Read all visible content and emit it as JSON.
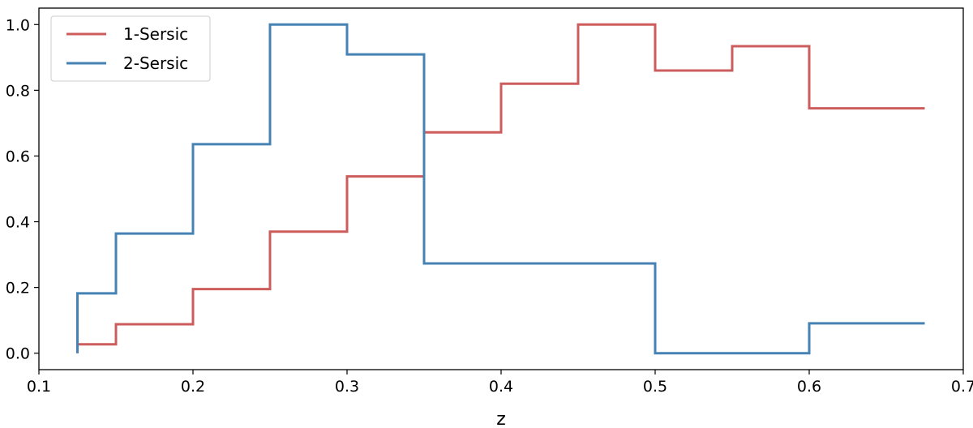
{
  "chart_data": {
    "type": "line",
    "style": "step",
    "title": "",
    "xlabel": "z",
    "ylabel": "",
    "xlim": [
      0.1,
      0.7
    ],
    "ylim": [
      -0.05,
      1.05
    ],
    "xticks": [
      0.1,
      0.2,
      0.3,
      0.4,
      0.5,
      0.6,
      0.7
    ],
    "xtick_labels": [
      "0.1",
      "0.2",
      "0.3",
      "0.4",
      "0.5",
      "0.6",
      "0.7"
    ],
    "yticks": [
      0.0,
      0.2,
      0.4,
      0.6,
      0.8,
      1.0
    ],
    "ytick_labels": [
      "0.0",
      "0.2",
      "0.4",
      "0.6",
      "0.8",
      "1.0"
    ],
    "grid": false,
    "legend_position": "top-left",
    "series": [
      {
        "name": "1-Sersic",
        "color": "#cd5c5c",
        "x": [
          0.125,
          0.175,
          0.225,
          0.275,
          0.325,
          0.375,
          0.425,
          0.475,
          0.525,
          0.575,
          0.625,
          0.675
        ],
        "y": [
          0.027,
          0.088,
          0.195,
          0.37,
          0.538,
          0.672,
          0.82,
          1.0,
          0.86,
          0.934,
          0.745,
          0.745
        ]
      },
      {
        "name": "2-Sersic",
        "color": "#4682b4",
        "x": [
          0.125,
          0.175,
          0.225,
          0.275,
          0.325,
          0.375,
          0.425,
          0.475,
          0.525,
          0.575,
          0.625,
          0.675
        ],
        "y": [
          0.182,
          0.364,
          0.636,
          1.0,
          0.909,
          0.273,
          0.273,
          0.273,
          0.0,
          0.0,
          0.091,
          0.091
        ]
      }
    ]
  }
}
